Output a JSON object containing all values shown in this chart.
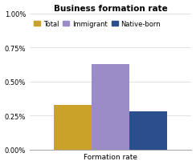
{
  "title": "Business formation rate",
  "categories": [
    "Total",
    "Immigrant",
    "Native-born"
  ],
  "values": [
    0.0033,
    0.0063,
    0.0028
  ],
  "bar_colors": [
    "#C9A227",
    "#9B8CC8",
    "#2B4F8C"
  ],
  "legend_labels": [
    "Total",
    "Immigrant",
    "Native-born"
  ],
  "xlabel": "Formation rate",
  "ylabel": "",
  "ylim": [
    0,
    0.01
  ],
  "yticks": [
    0,
    0.0025,
    0.005,
    0.0075,
    0.01
  ],
  "ytick_labels": [
    "0.00%",
    "0.25%",
    "0.50%",
    "0.75%",
    "1.00%"
  ],
  "background_color": "#ffffff",
  "title_fontsize": 7.5,
  "label_fontsize": 6.5,
  "tick_fontsize": 6
}
